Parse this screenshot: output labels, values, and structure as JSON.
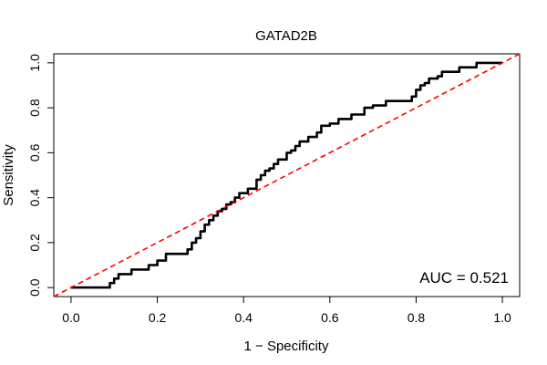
{
  "chart_data": {
    "type": "line",
    "title": "GATAD2B",
    "xlabel": "1 − Specificity",
    "ylabel": "Sensitivity",
    "xlim": [
      -0.04,
      1.04
    ],
    "ylim": [
      -0.04,
      1.04
    ],
    "xticks": [
      "0.0",
      "0.2",
      "0.4",
      "0.6",
      "0.8",
      "1.0"
    ],
    "yticks": [
      "0.0",
      "0.2",
      "0.4",
      "0.6",
      "0.8",
      "1.0"
    ],
    "annotation": "AUC = 0.521",
    "grid": false,
    "legend": "none",
    "series": [
      {
        "color": "#000000",
        "x": [
          0.0,
          0.09,
          0.09,
          0.1,
          0.1,
          0.11,
          0.11,
          0.14,
          0.14,
          0.18,
          0.18,
          0.2,
          0.2,
          0.22,
          0.22,
          0.27,
          0.27,
          0.28,
          0.28,
          0.29,
          0.29,
          0.3,
          0.3,
          0.31,
          0.31,
          0.32,
          0.32,
          0.33,
          0.33,
          0.34,
          0.34,
          0.35,
          0.35,
          0.36,
          0.36,
          0.37,
          0.37,
          0.38,
          0.38,
          0.39,
          0.39,
          0.41,
          0.41,
          0.43,
          0.43,
          0.44,
          0.44,
          0.45,
          0.45,
          0.46,
          0.46,
          0.47,
          0.47,
          0.48,
          0.48,
          0.5,
          0.5,
          0.51,
          0.51,
          0.52,
          0.52,
          0.53,
          0.53,
          0.55,
          0.55,
          0.57,
          0.57,
          0.58,
          0.58,
          0.6,
          0.6,
          0.62,
          0.62,
          0.65,
          0.65,
          0.68,
          0.68,
          0.7,
          0.7,
          0.73,
          0.73,
          0.79,
          0.79,
          0.8,
          0.8,
          0.81,
          0.81,
          0.82,
          0.82,
          0.83,
          0.83,
          0.85,
          0.85,
          0.86,
          0.86,
          0.9,
          0.9,
          0.94,
          0.94,
          1.0
        ],
        "y": [
          0.0,
          0.0,
          0.02,
          0.02,
          0.04,
          0.04,
          0.06,
          0.06,
          0.08,
          0.08,
          0.1,
          0.1,
          0.12,
          0.12,
          0.15,
          0.15,
          0.17,
          0.17,
          0.2,
          0.2,
          0.22,
          0.22,
          0.25,
          0.25,
          0.28,
          0.28,
          0.3,
          0.3,
          0.32,
          0.32,
          0.34,
          0.34,
          0.35,
          0.35,
          0.37,
          0.37,
          0.38,
          0.38,
          0.4,
          0.4,
          0.42,
          0.42,
          0.44,
          0.44,
          0.48,
          0.48,
          0.5,
          0.5,
          0.52,
          0.52,
          0.53,
          0.53,
          0.55,
          0.55,
          0.57,
          0.57,
          0.6,
          0.6,
          0.61,
          0.61,
          0.63,
          0.63,
          0.65,
          0.65,
          0.67,
          0.67,
          0.69,
          0.69,
          0.72,
          0.72,
          0.73,
          0.73,
          0.75,
          0.75,
          0.77,
          0.77,
          0.8,
          0.8,
          0.81,
          0.81,
          0.83,
          0.83,
          0.85,
          0.85,
          0.88,
          0.88,
          0.9,
          0.9,
          0.91,
          0.91,
          0.93,
          0.93,
          0.94,
          0.94,
          0.96,
          0.96,
          0.98,
          0.98,
          1.0,
          1.0
        ]
      },
      {
        "color": "#ff0000",
        "style": "dashed",
        "x": [
          -0.04,
          1.04
        ],
        "y": [
          -0.04,
          1.04
        ]
      }
    ]
  }
}
